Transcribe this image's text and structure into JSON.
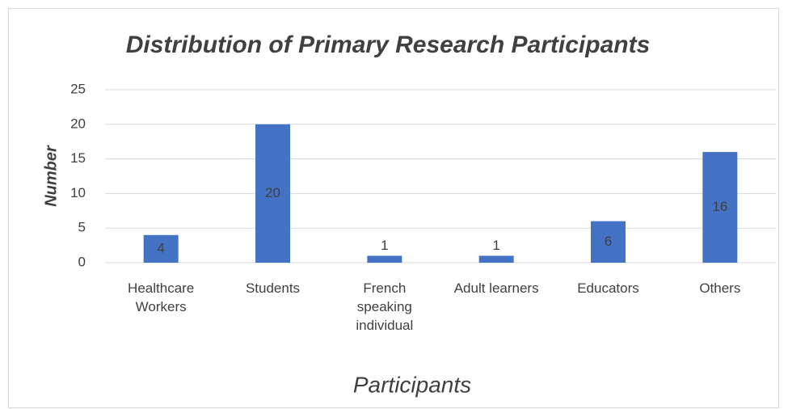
{
  "chart_data": {
    "type": "bar",
    "title": "Distribution of Primary Research Participants",
    "x_label": "Participants",
    "y_label": "Number",
    "categories": [
      "Healthcare Workers",
      "Students",
      "French speaking individual",
      "Adult learners",
      "Educators",
      "Others"
    ],
    "values": [
      4,
      20,
      1,
      1,
      6,
      16
    ],
    "color": "#4472c4",
    "ylim": [
      0,
      25
    ],
    "yticks": [
      0,
      5,
      10,
      15,
      20,
      25
    ],
    "grid": true
  }
}
